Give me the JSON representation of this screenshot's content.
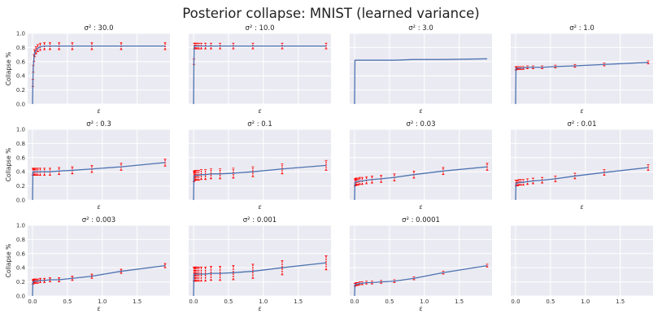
{
  "chart_data": {
    "type": "line",
    "title": "Posterior collapse: MNIST (learned variance)",
    "xlabel": "ε",
    "ylabel": "Collapse %",
    "xlim": [
      -0.07,
      1.97
    ],
    "ylim": [
      0,
      1
    ],
    "xticks": [
      "0.0",
      "0.5",
      "1.0",
      "1.5"
    ],
    "yticks": [
      "0.0",
      "0.2",
      "0.4",
      "0.6",
      "0.8",
      "1.0"
    ],
    "grid": true,
    "layout": "3x4 grid, last panel empty",
    "colors": {
      "line": "#4c72b0",
      "errorbar": "#ff0000",
      "background": "#eaeaf2"
    },
    "x": [
      0,
      0.005,
      0.01,
      0.02,
      0.03,
      0.05,
      0.075,
      0.11,
      0.17,
      0.25,
      0.38,
      0.57,
      0.85,
      1.27,
      1.9
    ],
    "panels": [
      {
        "title": "σ² : 30.0",
        "values": [
          0,
          0.3,
          0.5,
          0.65,
          0.72,
          0.76,
          0.79,
          0.81,
          0.82,
          0.82,
          0.82,
          0.82,
          0.82,
          0.82,
          0.82
        ],
        "yerr": 0.05
      },
      {
        "title": "σ² : 10.0",
        "values": [
          0,
          0.6,
          0.82,
          0.82,
          0.82,
          0.82,
          0.82,
          0.82,
          0.82,
          0.82,
          0.82,
          0.82,
          0.82,
          0.82,
          0.82
        ],
        "yerr": 0.04
      },
      {
        "title": "σ² : 3.0",
        "values": [
          0,
          0.62,
          0.62,
          0.62,
          0.62,
          0.62,
          0.62,
          0.62,
          0.62,
          0.62,
          0.62,
          0.62,
          0.63,
          0.63,
          0.64
        ],
        "yerr": 0
      },
      {
        "title": "σ² : 1.0",
        "values": [
          0,
          0.5,
          0.51,
          0.51,
          0.51,
          0.51,
          0.51,
          0.51,
          0.52,
          0.52,
          0.52,
          0.53,
          0.54,
          0.56,
          0.59
        ],
        "yerr": 0.02
      },
      {
        "title": "σ² : 0.3",
        "values": [
          0,
          0.4,
          0.4,
          0.4,
          0.4,
          0.4,
          0.4,
          0.4,
          0.4,
          0.4,
          0.41,
          0.42,
          0.44,
          0.47,
          0.53
        ],
        "yerr": 0.05
      },
      {
        "title": "σ² : 0.1",
        "values": [
          0,
          0.33,
          0.34,
          0.35,
          0.35,
          0.35,
          0.35,
          0.36,
          0.36,
          0.37,
          0.37,
          0.38,
          0.4,
          0.44,
          0.49
        ],
        "yerr": 0.07
      },
      {
        "title": "σ² : 0.03",
        "values": [
          0,
          0.25,
          0.25,
          0.26,
          0.26,
          0.26,
          0.27,
          0.27,
          0.28,
          0.29,
          0.3,
          0.32,
          0.36,
          0.41,
          0.47
        ],
        "yerr": 0.05
      },
      {
        "title": "σ² : 0.01",
        "values": [
          0,
          0.24,
          0.24,
          0.24,
          0.24,
          0.25,
          0.25,
          0.25,
          0.26,
          0.27,
          0.28,
          0.3,
          0.34,
          0.39,
          0.46
        ],
        "yerr": 0.04
      },
      {
        "title": "σ² : 0.003",
        "values": [
          0,
          0.2,
          0.2,
          0.21,
          0.21,
          0.21,
          0.21,
          0.22,
          0.22,
          0.23,
          0.23,
          0.25,
          0.28,
          0.35,
          0.43
        ],
        "yerr": 0.03
      },
      {
        "title": "σ² : 0.001",
        "values": [
          0,
          0.31,
          0.31,
          0.31,
          0.31,
          0.31,
          0.31,
          0.31,
          0.31,
          0.32,
          0.32,
          0.33,
          0.35,
          0.4,
          0.47
        ],
        "yerr": 0.1
      },
      {
        "title": "σ² : 0.0001",
        "values": [
          0,
          0.16,
          0.16,
          0.17,
          0.17,
          0.17,
          0.18,
          0.18,
          0.19,
          0.19,
          0.2,
          0.21,
          0.25,
          0.33,
          0.43
        ],
        "yerr": 0.02
      },
      {
        "title": "",
        "values": [],
        "yerr": 0
      }
    ]
  }
}
